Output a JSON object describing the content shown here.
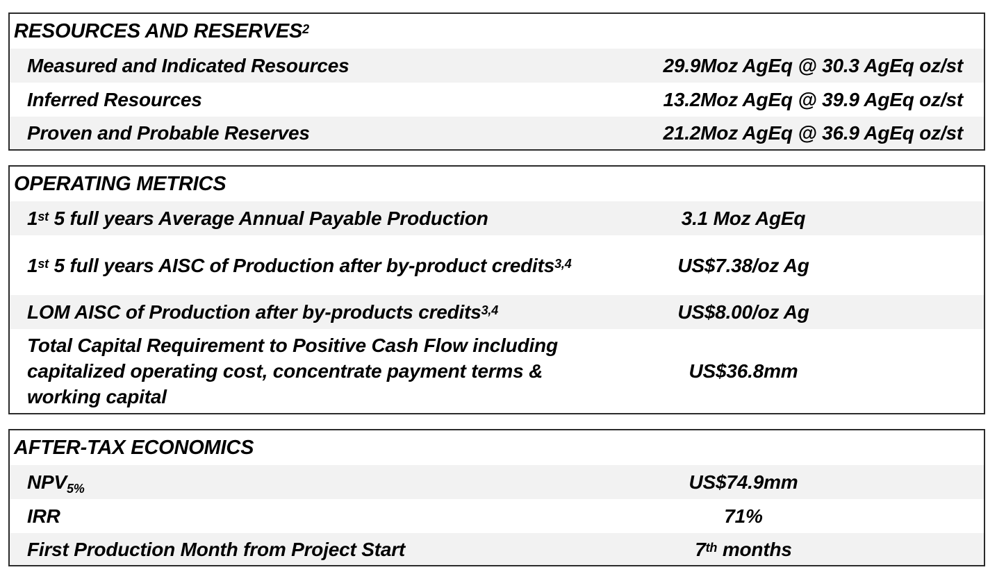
{
  "resources": {
    "title": "RESOURCES AND RESERVES",
    "title_sup": "2",
    "rows": [
      {
        "label": "Measured and Indicated Resources",
        "value": "29.9Moz AgEq @ 30.3 AgEq oz/st"
      },
      {
        "label": "Inferred Resources",
        "value": "13.2Moz AgEq @ 39.9 AgEq oz/st"
      },
      {
        "label": "Proven and Probable Reserves",
        "value": "21.2Moz AgEq @ 36.9 AgEq oz/st"
      }
    ]
  },
  "operating": {
    "title": "OPERATING METRICS",
    "rows": [
      {
        "label_pre": "1",
        "label_sup": "st",
        "label": " 5 full years Average Annual Payable Production",
        "value": "3.1 Moz AgEq"
      },
      {
        "label_pre": "1",
        "label_sup": "st",
        "label": " 5 full years AISC of Production after by-product credits",
        "label_note": "3,4",
        "value": "US$7.38/oz Ag"
      },
      {
        "label": "LOM AISC of Production after by-products credits",
        "label_note": "3,4",
        "value": "US$8.00/oz Ag"
      },
      {
        "label": "Total Capital Requirement to Positive Cash Flow including capitalized operating cost, concentrate payment terms & working capital",
        "value": "US$36.8mm"
      }
    ]
  },
  "economics": {
    "title": "AFTER-TAX ECONOMICS",
    "rows": [
      {
        "label": "NPV",
        "label_sub": "5%",
        "value": "US$74.9mm"
      },
      {
        "label": "IRR",
        "value": "71%"
      },
      {
        "label": "First Production Month from Project Start",
        "value_pre": "7",
        "value_sup": "th",
        "value": " months"
      }
    ]
  },
  "colors": {
    "border": "#2a2a2a",
    "row_shade": "#f2f2f2",
    "text": "#000000"
  }
}
